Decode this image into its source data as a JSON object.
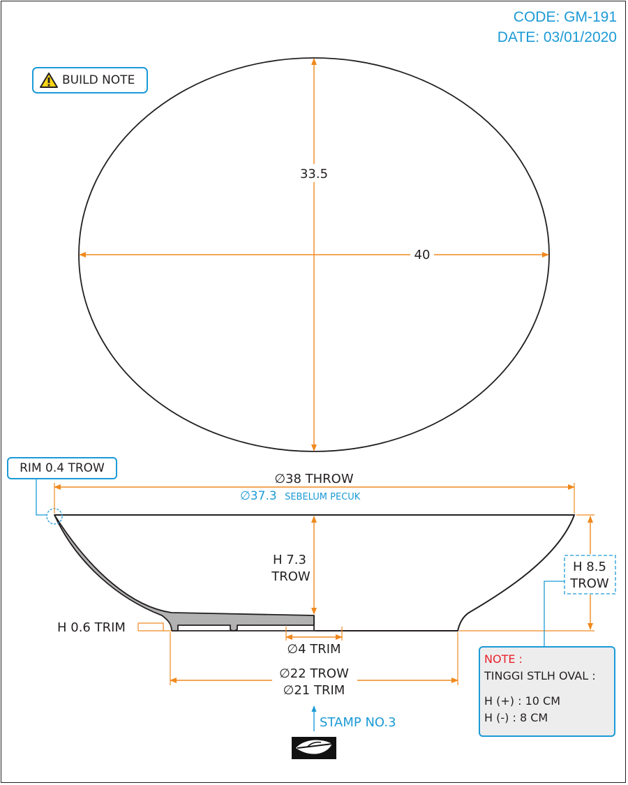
{
  "header": {
    "code": "CODE: GM-191",
    "date": "DATE: 03/01/2020"
  },
  "build_note": {
    "label": "BUILD NOTE",
    "icon": "warning-icon"
  },
  "top_view": {
    "height_dim": "33.5",
    "width_dim": "40"
  },
  "section_view": {
    "rim_label": "RIM 0.4 TROW",
    "throw_diameter": "∅38 THROW",
    "before_pinch_value": "∅37.3",
    "before_pinch_text": "SEBELUM PECUK",
    "inner_height_line1": "H 7.3",
    "inner_height_line2": "TROW",
    "outer_height_line1": "H 8.5",
    "outer_height_line2": "TROW",
    "foot_height": "H 0.6 TRIM",
    "hole_diameter": "∅4 TRIM",
    "foot_throw": "∅22 TROW",
    "foot_trim": "∅21 TRIM"
  },
  "note_box": {
    "title": "NOTE :",
    "line1": "TINGGI STLH OVAL :",
    "line2": "H (+) : 10 CM",
    "line3": "H (-) : 8 CM"
  },
  "stamp": {
    "label": "STAMP NO.3",
    "icon": "leaf-stamp-icon"
  },
  "colors": {
    "dimension": "#f0891e",
    "accent": "#1b9ad6",
    "outline": "#231f20",
    "fill": "#b2b2b2",
    "note": "#e8212a"
  }
}
